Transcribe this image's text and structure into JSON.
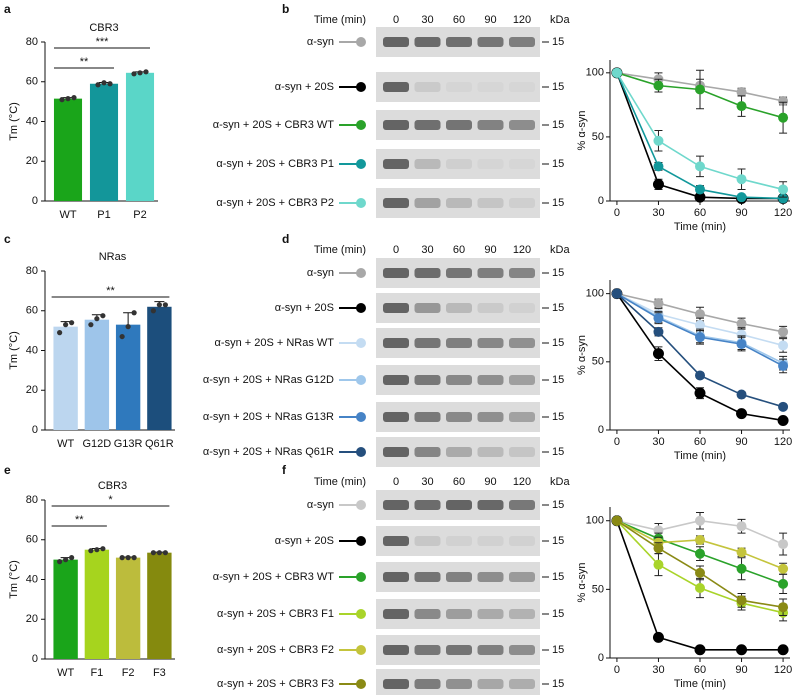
{
  "panel_labels": [
    "a",
    "b",
    "c",
    "d",
    "e",
    "f"
  ],
  "chart_data": [
    {
      "type": "bar",
      "title": "CBR3",
      "ylabel": "Tm (°C)",
      "categories": [
        "WT",
        "P1",
        "P2"
      ],
      "values": [
        51.5,
        59,
        64.5
      ],
      "errors": [
        0.5,
        0.6,
        0.5
      ],
      "points": [
        [
          51,
          51.5,
          52
        ],
        [
          58.5,
          59.5,
          59
        ],
        [
          64,
          64.5,
          65
        ]
      ],
      "colors": [
        "#1aa51a",
        "#13969a",
        "#5ad6c8"
      ],
      "ylim": [
        0,
        80
      ],
      "yticks": [
        0,
        20,
        40,
        60,
        80
      ],
      "annotations": [
        {
          "text": "**",
          "between": [
            0,
            1
          ]
        },
        {
          "text": "***",
          "between": [
            0,
            2
          ]
        }
      ]
    },
    {
      "type": "line",
      "xlabel": "Time (min)",
      "ylabel": "% α-syn",
      "x": [
        0,
        30,
        60,
        90,
        120
      ],
      "xlim": [
        -5,
        125
      ],
      "xticks": [
        0,
        30,
        60,
        90,
        120
      ],
      "ylim": [
        0,
        110
      ],
      "yticks": [
        0,
        50,
        100
      ],
      "series": [
        {
          "name": "α-syn",
          "color": "#a8a8a8",
          "values": [
            100,
            95,
            90,
            85,
            78
          ],
          "errors": [
            0,
            5,
            5,
            3,
            3
          ]
        },
        {
          "name": "α-syn + 20S",
          "color": "#000000",
          "values": [
            100,
            13,
            3,
            2,
            2
          ],
          "errors": [
            0,
            4,
            1,
            1,
            1
          ]
        },
        {
          "name": "α-syn + 20S + CBR3 WT",
          "color": "#2aa22a",
          "values": [
            100,
            90,
            87,
            74,
            65
          ],
          "errors": [
            0,
            5,
            15,
            8,
            12
          ]
        },
        {
          "name": "α-syn + 20S + CBR3 P1",
          "color": "#12989b",
          "values": [
            100,
            27,
            9,
            3,
            2
          ],
          "errors": [
            0,
            3,
            3,
            1,
            1
          ]
        },
        {
          "name": "α-syn + 20S + CBR3 P2",
          "color": "#6fd8cc",
          "values": [
            100,
            47,
            27,
            17,
            9
          ],
          "errors": [
            0,
            8,
            8,
            8,
            6
          ]
        }
      ]
    },
    {
      "type": "bar",
      "title": "NRas",
      "ylabel": "Tm (°C)",
      "categories": [
        "WT",
        "G12D",
        "G13R",
        "Q61R"
      ],
      "values": [
        52,
        55.5,
        53,
        62
      ],
      "errors": [
        2.5,
        2.5,
        6,
        2.6
      ],
      "points": [
        [
          49,
          53,
          54
        ],
        [
          53,
          56,
          57.5
        ],
        [
          47,
          52,
          59
        ],
        [
          60,
          63,
          63
        ]
      ],
      "colors": [
        "#bcd6ef",
        "#9ec5ea",
        "#2f79bd",
        "#1c4e7c"
      ],
      "ylim": [
        0,
        80
      ],
      "yticks": [
        0,
        20,
        40,
        60,
        80
      ],
      "annotations": [
        {
          "text": "**",
          "between": [
            0,
            3
          ]
        }
      ]
    },
    {
      "type": "line",
      "xlabel": "Time (min)",
      "ylabel": "% α-syn",
      "x": [
        0,
        30,
        60,
        90,
        120
      ],
      "xlim": [
        -5,
        125
      ],
      "xticks": [
        0,
        30,
        60,
        90,
        120
      ],
      "ylim": [
        0,
        110
      ],
      "yticks": [
        0,
        50,
        100
      ],
      "series": [
        {
          "name": "α-syn",
          "color": "#a8a8a8",
          "values": [
            100,
            93,
            85,
            78,
            72
          ],
          "errors": [
            0,
            3,
            5,
            4,
            4
          ]
        },
        {
          "name": "α-syn + 20S",
          "color": "#000000",
          "values": [
            100,
            56,
            27,
            12,
            7
          ],
          "errors": [
            0,
            5,
            4,
            1,
            1
          ]
        },
        {
          "name": "α-syn + 20S + NRas WT",
          "color": "#c4dcf2",
          "values": [
            100,
            85,
            77,
            70,
            62
          ],
          "errors": [
            0,
            4,
            5,
            5,
            5
          ]
        },
        {
          "name": "α-syn + 20S + NRas G12D",
          "color": "#9fc7eb",
          "values": [
            100,
            83,
            69,
            64,
            49
          ],
          "errors": [
            0,
            4,
            5,
            5,
            5
          ]
        },
        {
          "name": "α-syn + 20S + NRas G13R",
          "color": "#4683c6",
          "values": [
            100,
            82,
            68,
            63,
            47
          ],
          "errors": [
            0,
            4,
            5,
            5,
            5
          ]
        },
        {
          "name": "α-syn + 20S + NRas Q61R",
          "color": "#254f7d",
          "values": [
            100,
            72,
            40,
            26,
            17
          ],
          "errors": [
            0,
            3,
            2,
            2,
            1
          ]
        }
      ]
    },
    {
      "type": "bar",
      "title": "CBR3",
      "ylabel": "Tm (°C)",
      "categories": [
        "WT",
        "F1",
        "F2",
        "F3"
      ],
      "values": [
        50,
        55,
        51,
        53.5
      ],
      "errors": [
        1,
        0.6,
        0.3,
        0.3
      ],
      "points": [
        [
          49,
          50,
          51
        ],
        [
          54.5,
          55,
          55.5
        ],
        [
          51,
          51,
          51
        ],
        [
          53.5,
          53.5,
          53.5
        ]
      ],
      "colors": [
        "#1aa51a",
        "#a6d41e",
        "#bcbc3c",
        "#858a0e"
      ],
      "ylim": [
        0,
        80
      ],
      "yticks": [
        0,
        20,
        40,
        60,
        80
      ],
      "annotations": [
        {
          "text": "**",
          "between": [
            0,
            1
          ]
        },
        {
          "text": "*",
          "between": [
            0,
            3
          ]
        }
      ]
    },
    {
      "type": "line",
      "xlabel": "Time (min)",
      "ylabel": "% α-syn",
      "x": [
        0,
        30,
        60,
        90,
        120
      ],
      "xlim": [
        -5,
        125
      ],
      "xticks": [
        0,
        30,
        60,
        90,
        120
      ],
      "ylim": [
        0,
        110
      ],
      "yticks": [
        0,
        50,
        100
      ],
      "series": [
        {
          "name": "α-syn",
          "color": "#c8c8c8",
          "values": [
            100,
            93,
            100,
            96,
            83
          ],
          "errors": [
            0,
            5,
            6,
            5,
            8
          ]
        },
        {
          "name": "α-syn + 20S",
          "color": "#000000",
          "values": [
            100,
            15,
            6,
            6,
            6
          ],
          "errors": [
            0,
            2,
            1,
            1,
            1
          ]
        },
        {
          "name": "α-syn + 20S + CBR3 WT",
          "color": "#2aa22a",
          "values": [
            100,
            87,
            76,
            65,
            54
          ],
          "errors": [
            0,
            4,
            5,
            8,
            7
          ]
        },
        {
          "name": "α-syn + 20S + CBR3 F1",
          "color": "#a9d42a",
          "values": [
            100,
            68,
            51,
            40,
            33
          ],
          "errors": [
            0,
            8,
            7,
            5,
            6
          ]
        },
        {
          "name": "α-syn + 20S + CBR3 F2",
          "color": "#c4c43c",
          "values": [
            100,
            84,
            86,
            77,
            65
          ],
          "errors": [
            0,
            4,
            3,
            3,
            4
          ]
        },
        {
          "name": "α-syn + 20S + CBR3 F3",
          "color": "#8a8a15",
          "values": [
            100,
            80,
            62,
            42,
            37
          ],
          "errors": [
            0,
            4,
            5,
            5,
            6
          ]
        }
      ]
    }
  ],
  "blots": [
    {
      "time_label": "Time (min)",
      "lanes": [
        0,
        30,
        60,
        90,
        120
      ],
      "unit": "kDa",
      "marker": 15
    },
    {
      "time_label": "Time (min)",
      "lanes": [
        0,
        30,
        60,
        90,
        120
      ],
      "unit": "kDa",
      "marker": 15
    },
    {
      "time_label": "Time (min)",
      "lanes": [
        0,
        30,
        60,
        90,
        120
      ],
      "unit": "kDa",
      "marker": 15
    }
  ]
}
